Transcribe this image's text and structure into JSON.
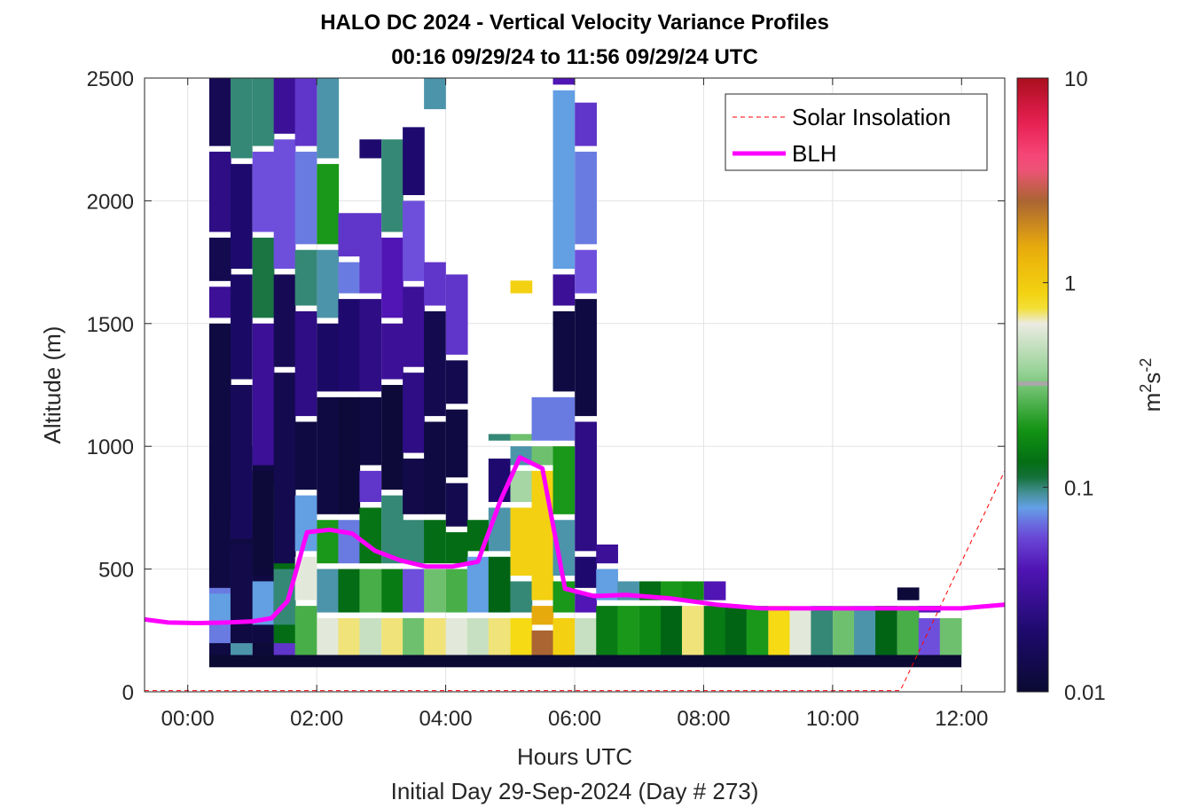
{
  "chart_data": {
    "type": "heatmap",
    "title": "HALO DC 2024 - Vertical Velocity Variance Profiles",
    "subtitle": "00:16 09/29/24 to 11:56 09/29/24  UTC",
    "xlabel": "Hours UTC",
    "xlabel2": "Initial Day 29-Sep-2024 (Day # 273)",
    "ylabel": "Altitude (m)",
    "xlim": [
      -0.67,
      12.67
    ],
    "ylim": [
      0,
      2500
    ],
    "xticks": [
      0,
      2,
      4,
      6,
      8,
      10,
      12
    ],
    "xtick_labels": [
      "00:00",
      "02:00",
      "04:00",
      "06:00",
      "08:00",
      "10:00",
      "12:00"
    ],
    "yticks": [
      0,
      500,
      1000,
      1500,
      2000,
      2500
    ],
    "ytick_labels": [
      "0",
      "500",
      "1000",
      "1500",
      "2000",
      "2500"
    ],
    "grid": true,
    "legend_position": "top-right",
    "colorbar": {
      "label": "m²s⁻²",
      "label_base": "m",
      "label_sup1": "2",
      "label_mid": "s",
      "label_sup2": "-2",
      "scale": "log",
      "range": [
        0.01,
        10
      ],
      "ticks": [
        0.01,
        0.1,
        1,
        10
      ],
      "tick_labels": [
        "0.01",
        "0.1",
        "1",
        "10"
      ]
    },
    "series": [
      {
        "name": "Solar Insolation",
        "color": "#ff0000",
        "style": "dashed",
        "x": [
          -0.67,
          11.05,
          12.67
        ],
        "y": [
          5,
          5,
          900
        ]
      },
      {
        "name": "BLH",
        "color": "#ff00ff",
        "style": "solid",
        "x": [
          -0.67,
          -0.3,
          0.15,
          0.6,
          1.0,
          1.3,
          1.55,
          1.85,
          2.2,
          2.55,
          2.9,
          3.3,
          3.7,
          4.1,
          4.5,
          4.85,
          5.15,
          5.5,
          5.85,
          6.3,
          6.8,
          7.5,
          8.2,
          8.9,
          9.6,
          10.4,
          11.2,
          12.0,
          12.67
        ],
        "y": [
          295,
          282,
          280,
          282,
          287,
          300,
          370,
          650,
          660,
          645,
          575,
          535,
          510,
          510,
          530,
          780,
          955,
          910,
          420,
          390,
          395,
          380,
          355,
          340,
          340,
          340,
          340,
          340,
          355
        ]
      }
    ],
    "heatmap": {
      "bin_width_hours": 0.333,
      "bin_height_m": 50,
      "columns": [
        {
          "t": 0.5,
          "cells": [
            [
              150,
              700,
              0.012
            ],
            [
              200,
              750,
              0.07
            ],
            [
              275,
              400,
              0.08
            ],
            [
              425,
              1500,
              0.012
            ],
            [
              1525,
              1650,
              0.03
            ],
            [
              1675,
              1850,
              0.014
            ],
            [
              1875,
              2200,
              0.025
            ],
            [
              2225,
              2500,
              0.015
            ]
          ]
        },
        {
          "t": 0.83,
          "cells": [
            [
              150,
              700,
              0.09
            ],
            [
              200,
              850,
              0.012
            ],
            [
              275,
              600,
              0.013
            ],
            [
              625,
              1250,
              0.016
            ],
            [
              1275,
              1700,
              0.018
            ],
            [
              1725,
              2150,
              0.02
            ],
            [
              2175,
              2500,
              0.1
            ]
          ]
        },
        {
          "t": 1.17,
          "cells": [
            [
              150,
              700,
              0.011
            ],
            [
              200,
              1000,
              0.012
            ],
            [
              275,
              450,
              0.08
            ],
            [
              475,
              900,
              0.011
            ],
            [
              925,
              1500,
              0.03
            ],
            [
              1525,
              1850,
              0.11
            ],
            [
              1875,
              2200,
              0.06
            ],
            [
              2225,
              2500,
              0.1
            ]
          ]
        },
        {
          "t": 1.5,
          "cells": [
            [
              150,
              700,
              0.05
            ],
            [
              200,
              850,
              0.13
            ],
            [
              275,
              500,
              0.1
            ],
            [
              525,
              1300,
              0.014
            ],
            [
              1325,
              1700,
              0.015
            ],
            [
              1725,
              2250,
              0.06
            ],
            [
              2275,
              2500,
              0.03
            ]
          ]
        },
        {
          "t": 1.83,
          "cells": [
            [
              150,
              350,
              0.25
            ],
            [
              375,
              550,
              0.6
            ],
            [
              575,
              800,
              0.08
            ],
            [
              825,
              1100,
              0.012
            ],
            [
              1125,
              1550,
              0.025
            ],
            [
              1575,
              1800,
              0.1
            ],
            [
              1825,
              2200,
              0.07
            ],
            [
              2225,
              2500,
              0.05
            ]
          ]
        },
        {
          "t": 2.17,
          "cells": [
            [
              150,
              300,
              0.6
            ],
            [
              325,
              500,
              0.09
            ],
            [
              525,
              700,
              0.2
            ],
            [
              725,
              1200,
              0.012
            ],
            [
              1225,
              1500,
              0.018
            ],
            [
              1525,
              1800,
              0.09
            ],
            [
              1825,
              2150,
              0.2
            ],
            [
              2175,
              2500,
              0.09
            ]
          ]
        },
        {
          "t": 2.5,
          "cells": [
            [
              150,
              300,
              0.7
            ],
            [
              325,
              500,
              0.13
            ],
            [
              525,
              700,
              0.07
            ],
            [
              725,
              1200,
              0.011
            ],
            [
              1225,
              1600,
              0.02
            ],
            [
              1625,
              1750,
              0.07
            ],
            [
              1775,
              1950,
              0.05
            ]
          ]
        },
        {
          "t": 2.83,
          "cells": [
            [
              150,
              300,
              0.5
            ],
            [
              325,
              500,
              0.25
            ],
            [
              525,
              750,
              0.14
            ],
            [
              775,
              900,
              0.05
            ],
            [
              925,
              1200,
              0.012
            ],
            [
              1225,
              1600,
              0.025
            ],
            [
              1625,
              1950,
              0.05
            ],
            [
              2175,
              2250,
              0.02
            ]
          ]
        },
        {
          "t": 3.17,
          "cells": [
            [
              150,
              300,
              0.7
            ],
            [
              325,
              500,
              0.15
            ],
            [
              525,
              800,
              0.1
            ],
            [
              825,
              1250,
              0.011
            ],
            [
              1275,
              1500,
              0.03
            ],
            [
              1525,
              1850,
              0.04
            ],
            [
              1875,
              2250,
              0.1
            ]
          ]
        },
        {
          "t": 3.5,
          "cells": [
            [
              150,
              300,
              0.3
            ],
            [
              325,
              500,
              0.06
            ],
            [
              525,
              700,
              0.1
            ],
            [
              725,
              950,
              0.013
            ],
            [
              975,
              1300,
              0.025
            ],
            [
              1325,
              1650,
              0.03
            ],
            [
              1675,
              2000,
              0.06
            ],
            [
              2025,
              2300,
              0.02
            ]
          ]
        },
        {
          "t": 3.83,
          "cells": [
            [
              150,
              300,
              0.7
            ],
            [
              325,
              500,
              0.3
            ],
            [
              525,
              700,
              0.13
            ],
            [
              725,
              1100,
              0.012
            ],
            [
              1125,
              1550,
              0.014
            ],
            [
              1575,
              1750,
              0.05
            ],
            [
              2375,
              2500,
              0.09
            ]
          ]
        },
        {
          "t": 4.17,
          "cells": [
            [
              150,
              300,
              0.6
            ],
            [
              325,
              500,
              0.25
            ],
            [
              525,
              650,
              0.13
            ],
            [
              675,
              850,
              0.014
            ],
            [
              875,
              1150,
              0.012
            ],
            [
              1175,
              1350,
              0.014
            ],
            [
              1375,
              1700,
              0.05
            ]
          ]
        },
        {
          "t": 4.5,
          "cells": [
            [
              150,
              300,
              0.5
            ],
            [
              325,
              550,
              0.08
            ],
            [
              575,
              700,
              0.13
            ]
          ]
        },
        {
          "t": 4.83,
          "cells": [
            [
              150,
              300,
              0.7
            ],
            [
              325,
              550,
              0.12
            ],
            [
              575,
              750,
              0.09
            ],
            [
              775,
              950,
              0.02
            ],
            [
              1025,
              1050,
              0.1
            ]
          ]
        },
        {
          "t": 5.17,
          "cells": [
            [
              150,
              300,
              0.8
            ],
            [
              325,
              450,
              0.1
            ],
            [
              475,
              750,
              0.9
            ],
            [
              775,
              900,
              0.4
            ],
            [
              925,
              1000,
              0.09
            ],
            [
              1025,
              1050,
              0.3
            ],
            [
              1625,
              1675,
              0.9
            ]
          ]
        },
        {
          "t": 5.5,
          "cells": [
            [
              150,
              250,
              2.5
            ],
            [
              275,
              350,
              1.5
            ],
            [
              375,
              900,
              0.9
            ],
            [
              925,
              1000,
              0.3
            ],
            [
              1025,
              1200,
              0.07
            ]
          ]
        },
        {
          "t": 5.83,
          "cells": [
            [
              150,
              300,
              0.9
            ],
            [
              325,
              450,
              0.2
            ],
            [
              475,
              700,
              0.09
            ],
            [
              725,
              1000,
              0.2
            ],
            [
              1025,
              1200,
              0.07
            ],
            [
              1225,
              1550,
              0.012
            ],
            [
              1575,
              1700,
              0.03
            ],
            [
              1725,
              2450,
              0.08
            ],
            [
              2475,
              2500,
              0.04
            ]
          ]
        },
        {
          "t": 6.17,
          "cells": [
            [
              150,
              300,
              0.5
            ],
            [
              325,
              400,
              0.04
            ],
            [
              425,
              550,
              0.02
            ],
            [
              575,
              1100,
              0.025
            ],
            [
              1125,
              1600,
              0.012
            ],
            [
              1625,
              1800,
              0.06
            ],
            [
              1825,
              2200,
              0.07
            ],
            [
              2225,
              2400,
              0.05
            ]
          ]
        },
        {
          "t": 6.5,
          "cells": [
            [
              150,
              350,
              0.15
            ],
            [
              375,
              500,
              0.08
            ],
            [
              525,
              600,
              0.03
            ]
          ]
        },
        {
          "t": 6.83,
          "cells": [
            [
              150,
              350,
              0.2
            ],
            [
              375,
              450,
              0.09
            ]
          ]
        },
        {
          "t": 7.17,
          "cells": [
            [
              150,
              350,
              0.17
            ],
            [
              375,
              450,
              0.13
            ]
          ]
        },
        {
          "t": 7.5,
          "cells": [
            [
              150,
              350,
              0.12
            ],
            [
              375,
              450,
              0.2
            ]
          ]
        },
        {
          "t": 7.83,
          "cells": [
            [
              150,
              350,
              0.7
            ],
            [
              375,
              450,
              0.18
            ]
          ]
        },
        {
          "t": 8.17,
          "cells": [
            [
              150,
              350,
              0.15
            ],
            [
              375,
              450,
              0.04
            ]
          ]
        },
        {
          "t": 8.5,
          "cells": [
            [
              150,
              350,
              0.12
            ]
          ]
        },
        {
          "t": 8.83,
          "cells": [
            [
              150,
              350,
              0.2
            ]
          ]
        },
        {
          "t": 9.17,
          "cells": [
            [
              150,
              350,
              0.8
            ]
          ]
        },
        {
          "t": 9.5,
          "cells": [
            [
              150,
              350,
              0.6
            ]
          ]
        },
        {
          "t": 9.83,
          "cells": [
            [
              150,
              350,
              0.1
            ]
          ]
        },
        {
          "t": 10.17,
          "cells": [
            [
              150,
              350,
              0.3
            ]
          ]
        },
        {
          "t": 10.5,
          "cells": [
            [
              150,
              350,
              0.09
            ]
          ]
        },
        {
          "t": 10.83,
          "cells": [
            [
              150,
              350,
              0.12
            ]
          ]
        },
        {
          "t": 11.17,
          "cells": [
            [
              150,
              350,
              0.25
            ],
            [
              375,
              425,
              0.011
            ]
          ]
        },
        {
          "t": 11.5,
          "cells": [
            [
              150,
              300,
              0.06
            ],
            [
              325,
              350,
              0.04
            ]
          ]
        },
        {
          "t": 11.83,
          "cells": [
            [
              150,
              300,
              0.3
            ]
          ]
        }
      ],
      "ground_row": {
        "altitude": [
          100,
          150
        ],
        "value": 0.01
      }
    }
  }
}
